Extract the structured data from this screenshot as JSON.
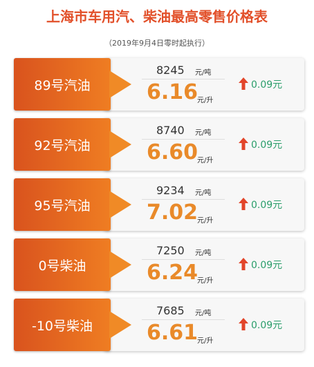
{
  "title": "上海市车用汽、柴油最高零售价格表",
  "subtitle": "（2019年9月4日零时起执行）",
  "rows": [
    {
      "name": "89号汽油",
      "ton": "8245",
      "ton_unit": "元/吨",
      "liter": "6.16",
      "liter_unit": "元/升",
      "change": "0.09元"
    },
    {
      "name": "92号汽油",
      "ton": "8740",
      "ton_unit": "元/吨",
      "liter": "6.60",
      "liter_unit": "元/升",
      "change": "0.09元"
    },
    {
      "name": "95号汽油",
      "ton": "9234",
      "ton_unit": "元/吨",
      "liter": "7.02",
      "liter_unit": "元/升",
      "change": "0.09元"
    },
    {
      "name": "0号柴油",
      "ton": "7250",
      "ton_unit": "元/吨",
      "liter": "6.24",
      "liter_unit": "元/升",
      "change": "0.09元"
    },
    {
      "name": "-10号柴油",
      "ton": "7685",
      "ton_unit": "元/吨",
      "liter": "6.61",
      "liter_unit": "元/升",
      "change": "0.09元"
    }
  ]
}
